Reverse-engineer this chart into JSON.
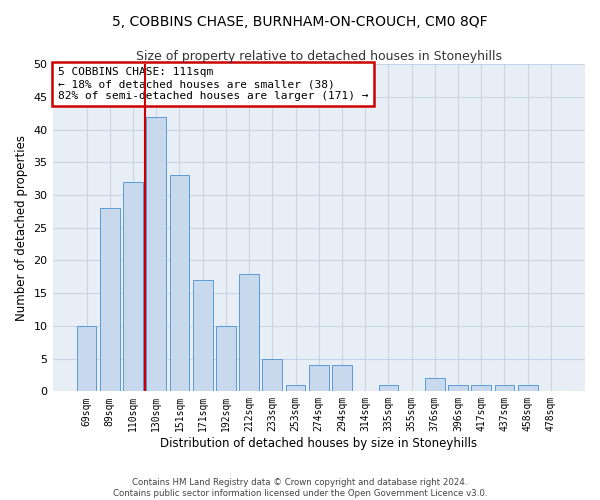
{
  "title": "5, COBBINS CHASE, BURNHAM-ON-CROUCH, CM0 8QF",
  "subtitle": "Size of property relative to detached houses in Stoneyhills",
  "xlabel": "Distribution of detached houses by size in Stoneyhills",
  "ylabel": "Number of detached properties",
  "categories": [
    "69sqm",
    "89sqm",
    "110sqm",
    "130sqm",
    "151sqm",
    "171sqm",
    "192sqm",
    "212sqm",
    "233sqm",
    "253sqm",
    "274sqm",
    "294sqm",
    "314sqm",
    "335sqm",
    "355sqm",
    "376sqm",
    "396sqm",
    "417sqm",
    "437sqm",
    "458sqm",
    "478sqm"
  ],
  "values": [
    10,
    28,
    32,
    42,
    33,
    17,
    10,
    18,
    5,
    1,
    4,
    4,
    0,
    1,
    0,
    2,
    1,
    1,
    1,
    1,
    0
  ],
  "bar_color": "#c9d9ed",
  "bar_edge_color": "#5b9bd5",
  "vline_x": 2.5,
  "vline_color": "#cc0000",
  "annotation_line1": "5 COBBINS CHASE: 111sqm",
  "annotation_line2": "← 18% of detached houses are smaller (38)",
  "annotation_line3": "82% of semi-detached houses are larger (171) →",
  "annotation_box_color": "#ffffff",
  "annotation_box_edge_color": "#cc0000",
  "ylim": [
    0,
    50
  ],
  "yticks": [
    0,
    5,
    10,
    15,
    20,
    25,
    30,
    35,
    40,
    45,
    50
  ],
  "background_color": "#ffffff",
  "plot_bg_color": "#e8eef5",
  "grid_color": "#c8d4e4",
  "footer1": "Contains HM Land Registry data © Crown copyright and database right 2024.",
  "footer2": "Contains public sector information licensed under the Open Government Licence v3.0."
}
